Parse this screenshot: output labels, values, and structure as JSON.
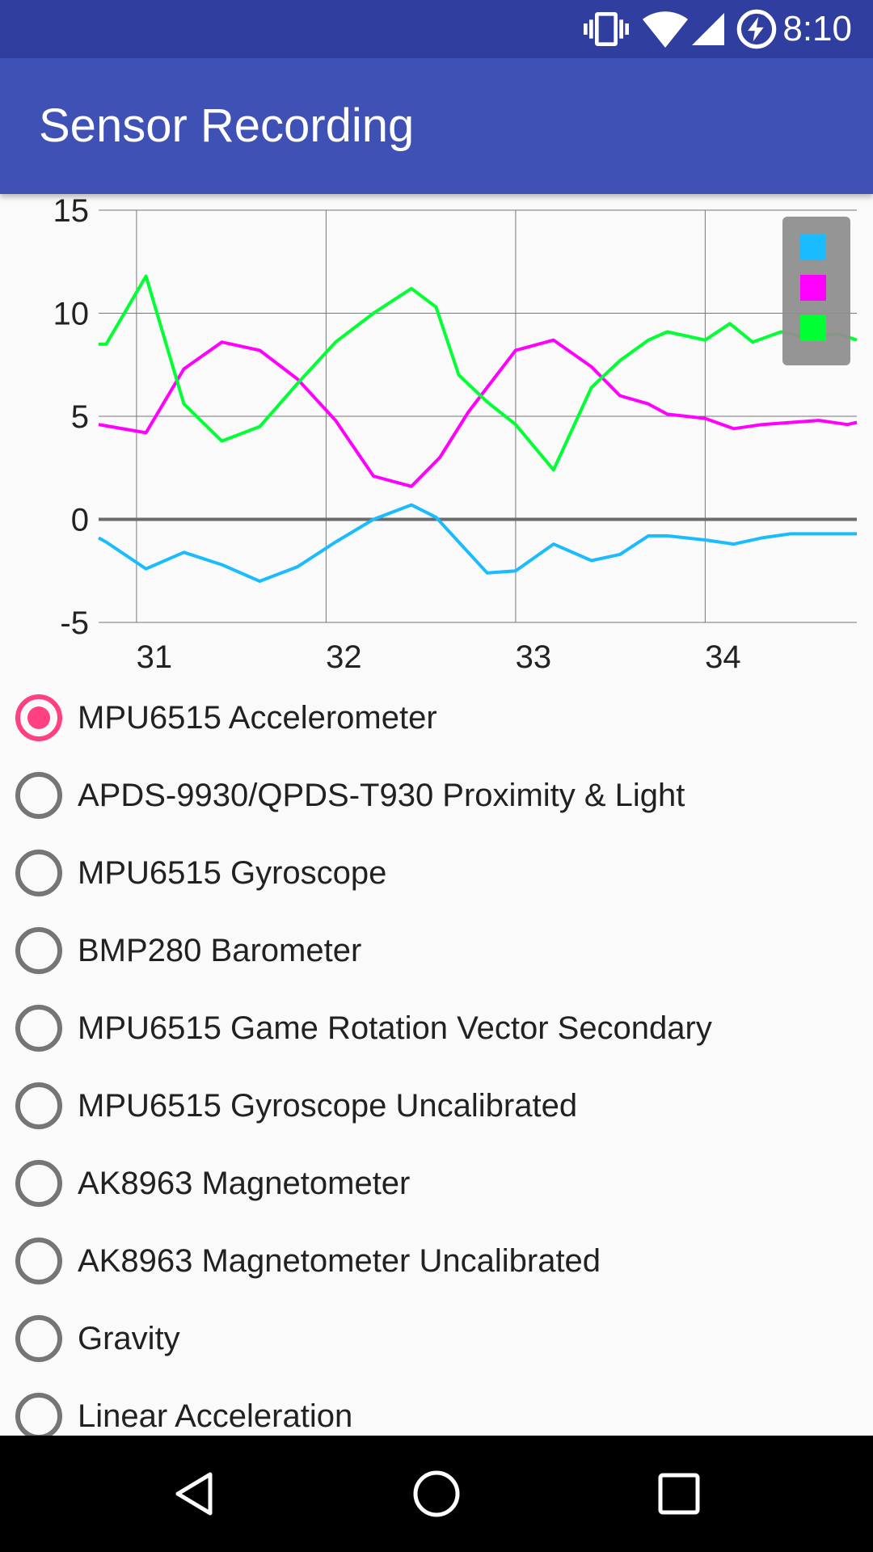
{
  "status_bar": {
    "time": "8:10",
    "icons": [
      "vibrate-icon",
      "wifi-icon",
      "cell-signal-icon",
      "battery-charging-icon"
    ]
  },
  "app_bar": {
    "title": "Sensor Recording"
  },
  "chart_data": {
    "type": "line",
    "title": "",
    "xlabel": "",
    "ylabel": "",
    "xlim": [
      30.8,
      34.8
    ],
    "ylim": [
      -5,
      15
    ],
    "x_ticks": [
      "31",
      "32",
      "33",
      "34"
    ],
    "y_ticks": [
      "15",
      "10",
      "5",
      "0",
      "-5"
    ],
    "grid": true,
    "legend_placement": "top-right",
    "series": [
      {
        "color": "#1ABCFF",
        "x": [
          30.8,
          30.84,
          31.05,
          31.25,
          31.45,
          31.65,
          31.85,
          32.05,
          32.25,
          32.45,
          32.58,
          32.7,
          32.85,
          33.0,
          33.2,
          33.4,
          33.55,
          33.7,
          33.8,
          34.0,
          34.15,
          34.3,
          34.45,
          34.6,
          34.8
        ],
        "y": [
          -0.9,
          -1.1,
          -2.4,
          -1.6,
          -2.2,
          -3.0,
          -2.3,
          -1.1,
          0.0,
          0.7,
          0.1,
          -1.1,
          -2.6,
          -2.5,
          -1.2,
          -2.0,
          -1.7,
          -0.8,
          -0.8,
          -1.0,
          -1.2,
          -0.9,
          -0.7,
          -0.7,
          -0.7
        ]
      },
      {
        "color": "#FF00FF",
        "x": [
          30.8,
          31.05,
          31.25,
          31.45,
          31.65,
          31.85,
          32.05,
          32.25,
          32.45,
          32.6,
          32.75,
          32.9,
          33.0,
          33.2,
          33.4,
          33.55,
          33.7,
          33.8,
          34.0,
          34.15,
          34.3,
          34.45,
          34.6,
          34.75,
          34.8
        ],
        "y": [
          4.6,
          4.2,
          7.3,
          8.6,
          8.2,
          6.8,
          4.8,
          2.1,
          1.6,
          3.0,
          5.2,
          7.0,
          8.2,
          8.7,
          7.4,
          6.0,
          5.6,
          5.1,
          4.9,
          4.4,
          4.6,
          4.7,
          4.8,
          4.6,
          4.7
        ]
      },
      {
        "color": "#00FF33",
        "x": [
          30.8,
          30.84,
          31.05,
          31.25,
          31.45,
          31.65,
          31.85,
          32.05,
          32.25,
          32.45,
          32.58,
          32.7,
          32.85,
          33.0,
          33.2,
          33.4,
          33.55,
          33.7,
          33.8,
          34.0,
          34.13,
          34.25,
          34.4,
          34.55,
          34.7,
          34.8
        ],
        "y": [
          8.5,
          8.5,
          11.8,
          5.6,
          3.8,
          4.5,
          6.6,
          8.6,
          10.0,
          11.2,
          10.3,
          7.0,
          5.7,
          4.6,
          2.4,
          6.4,
          7.7,
          8.7,
          9.1,
          8.7,
          9.5,
          8.6,
          9.1,
          8.8,
          9.0,
          8.7
        ]
      }
    ]
  },
  "sensor_list": {
    "selected_index": 0,
    "items": [
      {
        "label": "MPU6515 Accelerometer"
      },
      {
        "label": "APDS-9930/QPDS-T930 Proximity & Light"
      },
      {
        "label": "MPU6515 Gyroscope"
      },
      {
        "label": "BMP280 Barometer"
      },
      {
        "label": "MPU6515 Game Rotation Vector Secondary"
      },
      {
        "label": "MPU6515 Gyroscope Uncalibrated"
      },
      {
        "label": "AK8963 Magnetometer"
      },
      {
        "label": "AK8963 Magnetometer Uncalibrated"
      },
      {
        "label": "Gravity"
      },
      {
        "label": "Linear Acceleration"
      }
    ]
  },
  "nav_bar": {
    "icons": [
      "back-icon",
      "home-icon",
      "recents-icon"
    ]
  },
  "colors": {
    "status_bar": "#303F9F",
    "app_bar": "#3F51B5",
    "accent": "#FF4081",
    "legend_box": "#8F8F8F"
  }
}
